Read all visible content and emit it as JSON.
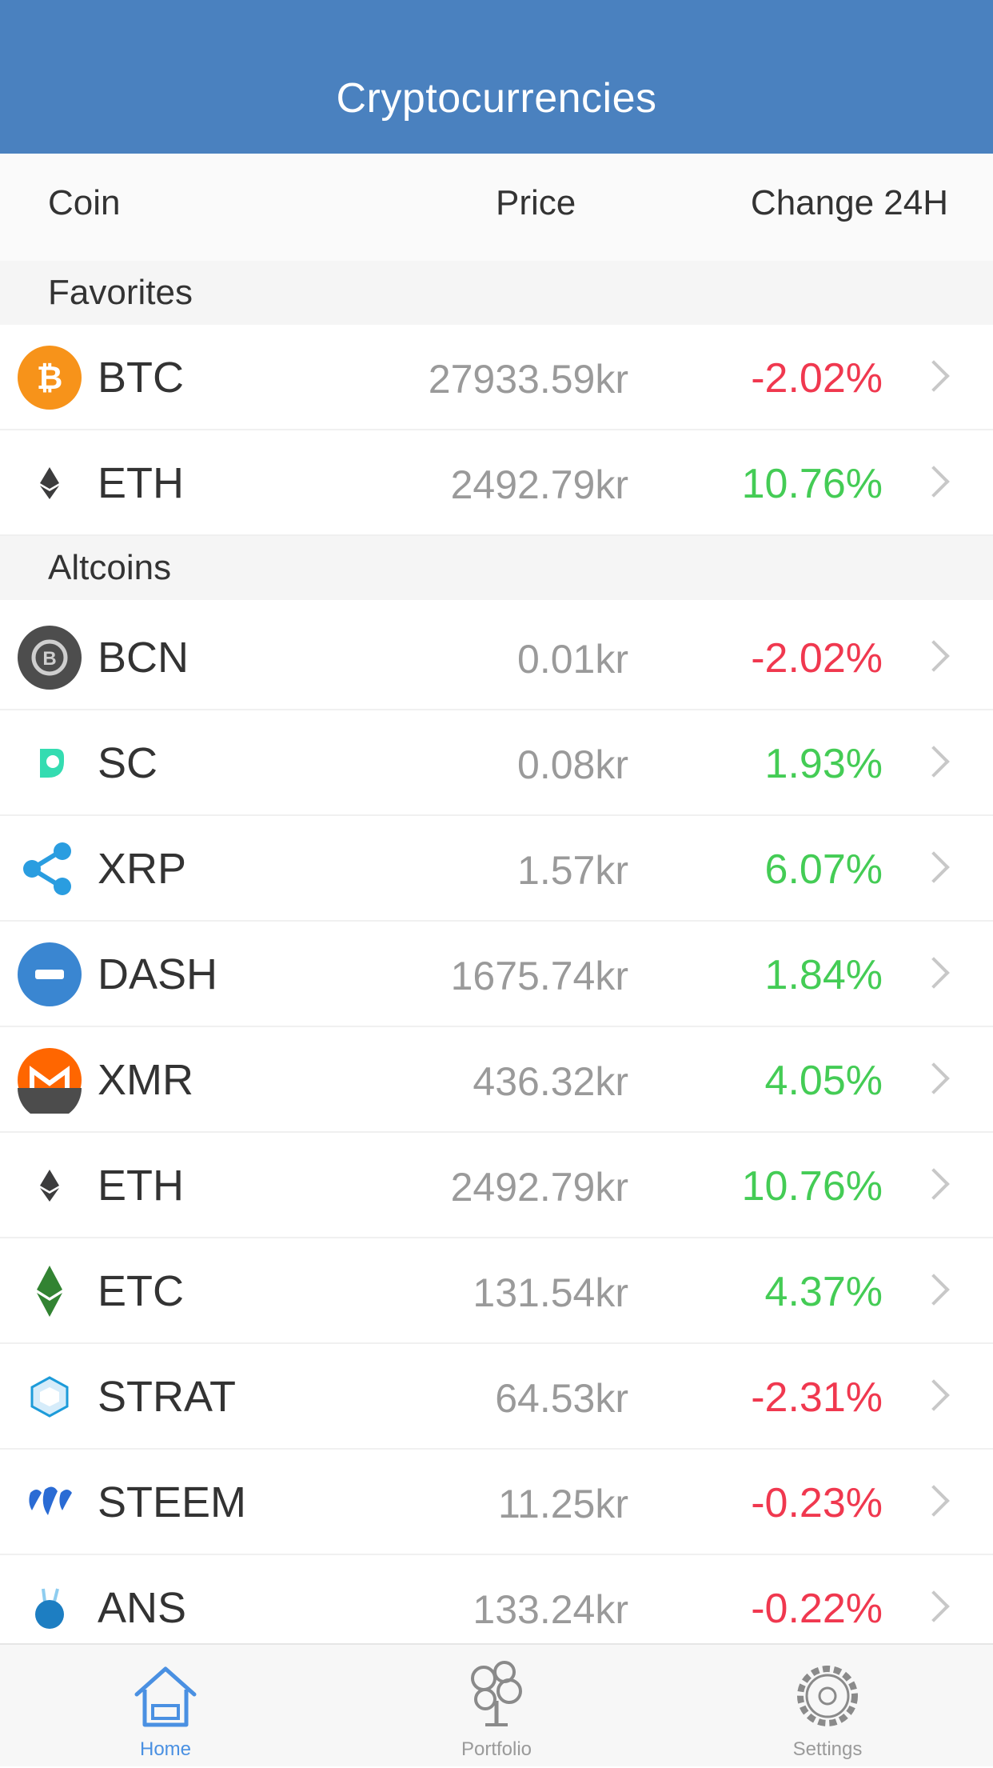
{
  "header": {
    "title": "Cryptocurrencies"
  },
  "columns": {
    "coin": "Coin",
    "price": "Price",
    "change": "Change 24H"
  },
  "sections": [
    {
      "title": "Favorites",
      "coins": [
        {
          "symbol": "BTC",
          "price": "27933.59kr",
          "change": "-2.02%",
          "trend": "down",
          "icon": "btc-icon",
          "color": "#f7931a"
        },
        {
          "symbol": "ETH",
          "price": "2492.79kr",
          "change": "10.76%",
          "trend": "up",
          "icon": "eth-icon",
          "color": "#3c3c3d"
        }
      ]
    },
    {
      "title": "Altcoins",
      "coins": [
        {
          "symbol": "BCN",
          "price": "0.01kr",
          "change": "-2.02%",
          "trend": "down",
          "icon": "bcn-icon",
          "color": "#4d4d4d"
        },
        {
          "symbol": "SC",
          "price": "0.08kr",
          "change": "1.93%",
          "trend": "up",
          "icon": "sc-icon",
          "color": "#1ed8a8"
        },
        {
          "symbol": "XRP",
          "price": "1.57kr",
          "change": "6.07%",
          "trend": "up",
          "icon": "xrp-icon",
          "color": "#2a9de0"
        },
        {
          "symbol": "DASH",
          "price": "1675.74kr",
          "change": "1.84%",
          "trend": "up",
          "icon": "dash-icon",
          "color": "#3a86d1"
        },
        {
          "symbol": "XMR",
          "price": "436.32kr",
          "change": "4.05%",
          "trend": "up",
          "icon": "xmr-icon",
          "color": "#ff6600"
        },
        {
          "symbol": "ETH",
          "price": "2492.79kr",
          "change": "10.76%",
          "trend": "up",
          "icon": "eth-icon",
          "color": "#3c3c3d"
        },
        {
          "symbol": "ETC",
          "price": "131.54kr",
          "change": "4.37%",
          "trend": "up",
          "icon": "etc-icon",
          "color": "#328332"
        },
        {
          "symbol": "STRAT",
          "price": "64.53kr",
          "change": "-2.31%",
          "trend": "down",
          "icon": "strat-icon",
          "color": "#1d9bd9"
        },
        {
          "symbol": "STEEM",
          "price": "11.25kr",
          "change": "-0.23%",
          "trend": "down",
          "icon": "steem-icon",
          "color": "#2a6bd4"
        },
        {
          "symbol": "ANS",
          "price": "133.24kr",
          "change": "-0.22%",
          "trend": "down",
          "icon": "ans-icon",
          "color": "#1d7ec2"
        }
      ]
    }
  ],
  "tabs": [
    {
      "label": "Home",
      "icon": "home-icon",
      "active": true
    },
    {
      "label": "Portfolio",
      "icon": "portfolio-icon",
      "active": false
    },
    {
      "label": "Settings",
      "icon": "settings-icon",
      "active": false
    }
  ],
  "colors": {
    "accent": "#4a81bf",
    "negative": "#f0384f",
    "positive": "#44cc55",
    "tab_active": "#4a90e2"
  }
}
